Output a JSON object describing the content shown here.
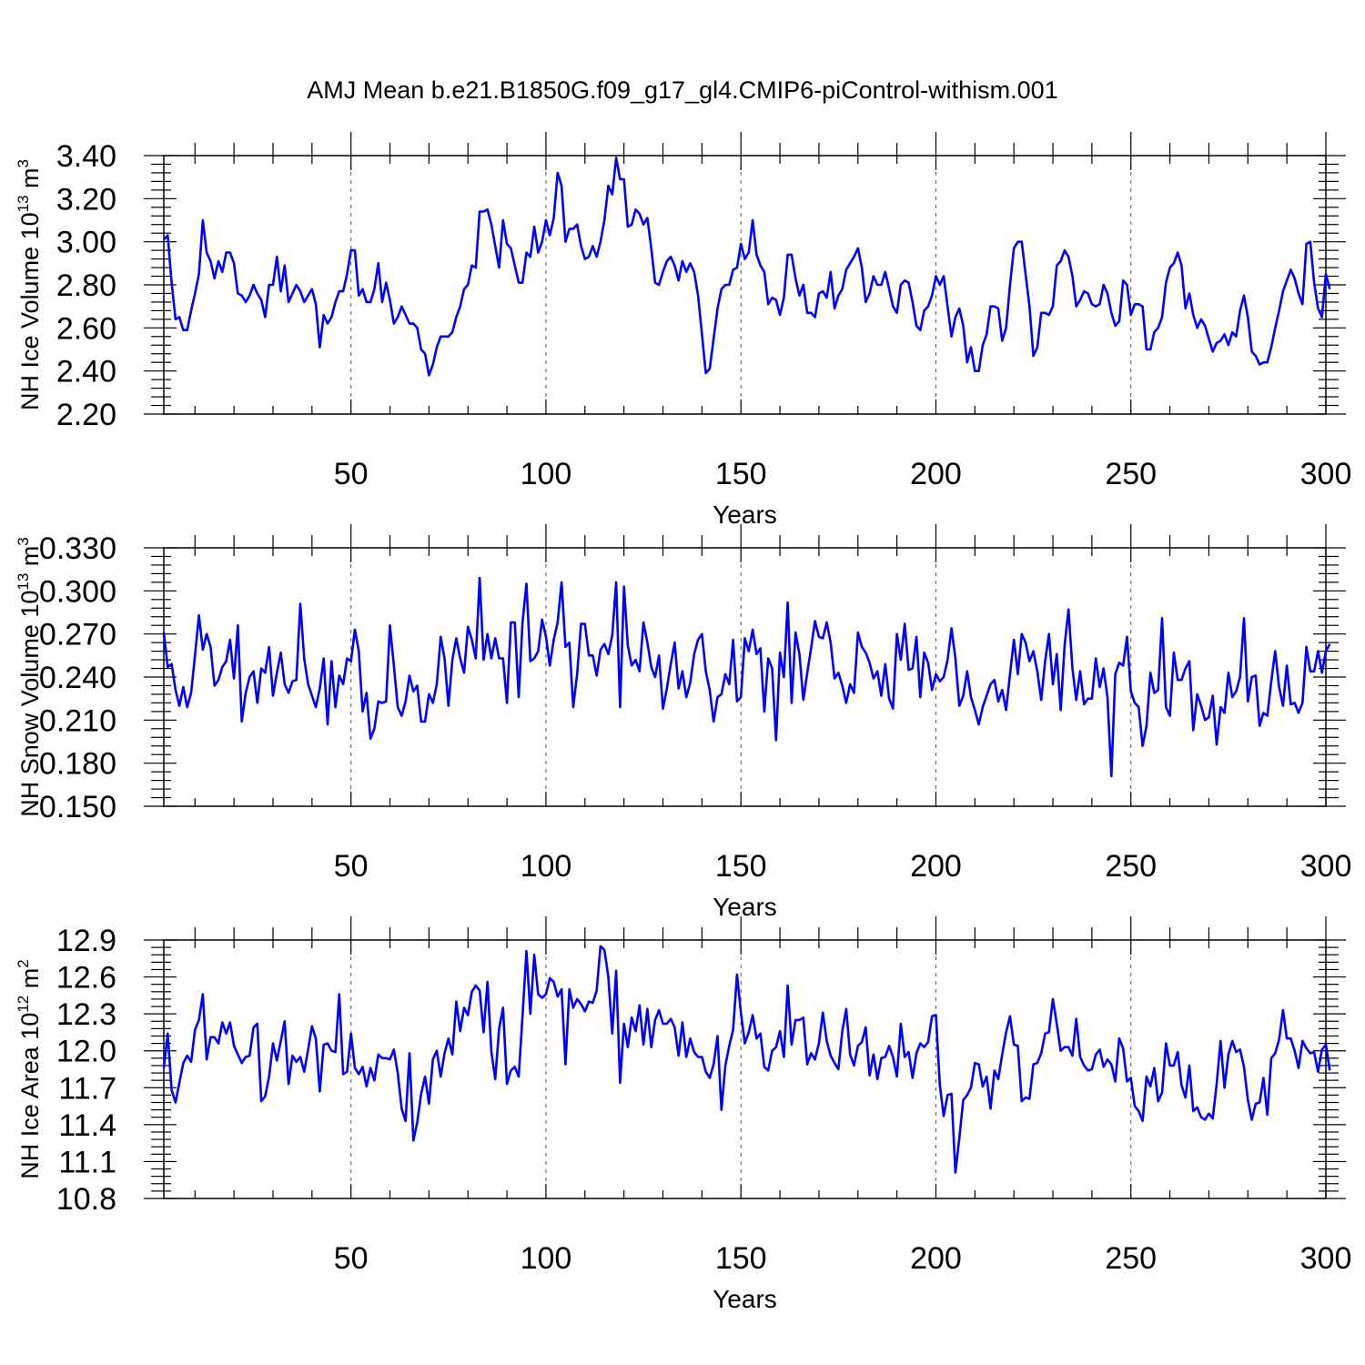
{
  "title": "AMJ Mean b.e21.B1850G.f09_g17_gl4.CMIP6-piControl-withism.001",
  "chart_data": [
    {
      "type": "line",
      "xlabel": "Years",
      "ylabel": "NH Ice Volume 10",
      "ylabel_exp": "13",
      "ylabel_unit": " m",
      "ylabel_unit_exp": "3",
      "xlim": [
        2,
        300
      ],
      "ylim": [
        2.2,
        3.4
      ],
      "xticks": [
        50,
        100,
        150,
        200,
        250,
        300
      ],
      "xtick_labels": [
        "50",
        "100",
        "150",
        "200",
        "250",
        "300"
      ],
      "yticks": [
        2.2,
        2.4,
        2.6,
        2.8,
        3.0,
        3.2,
        3.4
      ],
      "ytick_labels": [
        "2.20",
        "2.40",
        "2.60",
        "2.80",
        "3.00",
        "3.20",
        "3.40"
      ],
      "grid_x": [
        50,
        100,
        150,
        200,
        250
      ],
      "color": "#0000ff",
      "x_start": 2,
      "values": [
        3.01,
        3.03,
        2.81,
        2.64,
        2.65,
        2.59,
        2.59,
        2.68,
        2.76,
        2.85,
        3.1,
        2.95,
        2.91,
        2.83,
        2.91,
        2.86,
        2.95,
        2.95,
        2.9,
        2.76,
        2.75,
        2.72,
        2.75,
        2.8,
        2.76,
        2.73,
        2.65,
        2.8,
        2.8,
        2.93,
        2.77,
        2.89,
        2.72,
        2.76,
        2.8,
        2.77,
        2.72,
        2.75,
        2.78,
        2.71,
        2.51,
        2.66,
        2.62,
        2.65,
        2.72,
        2.77,
        2.77,
        2.85,
        2.96,
        2.96,
        2.75,
        2.78,
        2.72,
        2.72,
        2.78,
        2.9,
        2.72,
        2.81,
        2.73,
        2.62,
        2.65,
        2.7,
        2.66,
        2.62,
        2.62,
        2.6,
        2.5,
        2.48,
        2.38,
        2.43,
        2.51,
        2.56,
        2.56,
        2.56,
        2.58,
        2.65,
        2.7,
        2.78,
        2.8,
        2.89,
        2.88,
        3.14,
        3.14,
        3.15,
        3.08,
        2.98,
        2.88,
        3.1,
        2.99,
        2.97,
        2.89,
        2.81,
        2.81,
        2.95,
        2.93,
        3.07,
        2.95,
        3.0,
        3.1,
        3.03,
        3.11,
        3.32,
        3.26,
        3.0,
        3.06,
        3.06,
        3.08,
        2.98,
        2.92,
        2.93,
        2.98,
        2.93,
        3.0,
        3.1,
        3.26,
        3.22,
        3.39,
        3.29,
        3.29,
        3.07,
        3.08,
        3.15,
        3.13,
        3.08,
        3.11,
        2.97,
        2.81,
        2.8,
        2.86,
        2.91,
        2.93,
        2.89,
        2.82,
        2.91,
        2.86,
        2.9,
        2.86,
        2.75,
        2.57,
        2.39,
        2.41,
        2.55,
        2.69,
        2.78,
        2.8,
        2.8,
        2.87,
        2.88,
        2.99,
        2.92,
        2.95,
        3.1,
        2.94,
        2.89,
        2.86,
        2.71,
        2.74,
        2.73,
        2.66,
        2.74,
        2.94,
        2.94,
        2.83,
        2.75,
        2.8,
        2.67,
        2.67,
        2.65,
        2.76,
        2.77,
        2.74,
        2.86,
        2.69,
        2.75,
        2.78,
        2.87,
        2.9,
        2.93,
        2.97,
        2.88,
        2.72,
        2.76,
        2.84,
        2.8,
        2.8,
        2.86,
        2.78,
        2.7,
        2.67,
        2.8,
        2.82,
        2.81,
        2.72,
        2.61,
        2.59,
        2.68,
        2.7,
        2.75,
        2.84,
        2.8,
        2.84,
        2.7,
        2.56,
        2.65,
        2.69,
        2.61,
        2.44,
        2.51,
        2.4,
        2.4,
        2.52,
        2.57,
        2.7,
        2.7,
        2.69,
        2.54,
        2.6,
        2.8,
        2.97,
        3.0,
        3.0,
        2.85,
        2.7,
        2.47,
        2.51,
        2.67,
        2.67,
        2.66,
        2.7,
        2.89,
        2.91,
        2.96,
        2.93,
        2.84,
        2.7,
        2.73,
        2.77,
        2.76,
        2.71,
        2.7,
        2.71,
        2.8,
        2.76,
        2.67,
        2.61,
        2.63,
        2.82,
        2.8,
        2.66,
        2.71,
        2.71,
        2.7,
        2.5,
        2.5,
        2.58,
        2.6,
        2.65,
        2.81,
        2.88,
        2.9,
        2.95,
        2.89,
        2.69,
        2.76,
        2.66,
        2.6,
        2.64,
        2.61,
        2.55,
        2.49,
        2.53,
        2.54,
        2.57,
        2.52,
        2.58,
        2.56,
        2.68,
        2.75,
        2.65,
        2.49,
        2.47,
        2.43,
        2.44,
        2.44,
        2.51,
        2.6,
        2.68,
        2.77,
        2.82,
        2.87,
        2.83,
        2.76,
        2.71,
        2.99,
        3.0,
        2.81,
        2.69,
        2.65,
        2.85,
        2.78
      ]
    },
    {
      "type": "line",
      "xlabel": "Years",
      "ylabel": "NH Snow Volume 10",
      "ylabel_exp": "13",
      "ylabel_unit": " m",
      "ylabel_unit_exp": "3",
      "xlim": [
        2,
        300
      ],
      "ylim": [
        0.15,
        0.33
      ],
      "xticks": [
        50,
        100,
        150,
        200,
        250,
        300
      ],
      "xtick_labels": [
        "50",
        "100",
        "150",
        "200",
        "250",
        "300"
      ],
      "yticks": [
        0.15,
        0.18,
        0.21,
        0.24,
        0.27,
        0.3,
        0.33
      ],
      "ytick_labels": [
        "0.150",
        "0.180",
        "0.210",
        "0.240",
        "0.270",
        "0.300",
        "0.330"
      ],
      "grid_x": [
        50,
        100,
        150,
        200,
        250
      ],
      "color": "#0000ff",
      "x_start": 2,
      "values": [
        0.271,
        0.247,
        0.249,
        0.231,
        0.22,
        0.233,
        0.219,
        0.229,
        0.255,
        0.283,
        0.259,
        0.27,
        0.261,
        0.234,
        0.238,
        0.247,
        0.251,
        0.266,
        0.239,
        0.276,
        0.209,
        0.229,
        0.24,
        0.244,
        0.222,
        0.246,
        0.243,
        0.261,
        0.227,
        0.243,
        0.257,
        0.235,
        0.229,
        0.237,
        0.238,
        0.291,
        0.253,
        0.235,
        0.227,
        0.219,
        0.232,
        0.253,
        0.207,
        0.251,
        0.219,
        0.241,
        0.235,
        0.253,
        0.251,
        0.273,
        0.258,
        0.216,
        0.229,
        0.197,
        0.204,
        0.223,
        0.222,
        0.223,
        0.276,
        0.248,
        0.219,
        0.213,
        0.223,
        0.241,
        0.23,
        0.234,
        0.209,
        0.209,
        0.228,
        0.222,
        0.235,
        0.268,
        0.253,
        0.22,
        0.252,
        0.267,
        0.253,
        0.243,
        0.275,
        0.266,
        0.253,
        0.309,
        0.252,
        0.27,
        0.253,
        0.267,
        0.253,
        0.253,
        0.222,
        0.278,
        0.278,
        0.226,
        0.278,
        0.305,
        0.251,
        0.253,
        0.258,
        0.28,
        0.268,
        0.248,
        0.266,
        0.278,
        0.306,
        0.261,
        0.264,
        0.219,
        0.242,
        0.277,
        0.277,
        0.255,
        0.255,
        0.241,
        0.259,
        0.263,
        0.256,
        0.269,
        0.306,
        0.219,
        0.303,
        0.262,
        0.248,
        0.252,
        0.244,
        0.278,
        0.264,
        0.247,
        0.24,
        0.255,
        0.218,
        0.232,
        0.249,
        0.264,
        0.232,
        0.244,
        0.226,
        0.236,
        0.256,
        0.266,
        0.27,
        0.244,
        0.231,
        0.209,
        0.226,
        0.228,
        0.242,
        0.235,
        0.266,
        0.223,
        0.226,
        0.267,
        0.258,
        0.273,
        0.256,
        0.26,
        0.216,
        0.253,
        0.246,
        0.196,
        0.257,
        0.24,
        0.292,
        0.222,
        0.271,
        0.256,
        0.224,
        0.243,
        0.26,
        0.279,
        0.268,
        0.267,
        0.278,
        0.264,
        0.239,
        0.243,
        0.234,
        0.222,
        0.235,
        0.229,
        0.271,
        0.261,
        0.257,
        0.25,
        0.239,
        0.244,
        0.227,
        0.249,
        0.225,
        0.218,
        0.27,
        0.252,
        0.277,
        0.245,
        0.246,
        0.268,
        0.226,
        0.257,
        0.25,
        0.231,
        0.242,
        0.237,
        0.24,
        0.252,
        0.274,
        0.253,
        0.22,
        0.227,
        0.244,
        0.226,
        0.217,
        0.207,
        0.219,
        0.227,
        0.235,
        0.238,
        0.223,
        0.231,
        0.217,
        0.242,
        0.266,
        0.242,
        0.27,
        0.264,
        0.251,
        0.258,
        0.244,
        0.224,
        0.251,
        0.27,
        0.235,
        0.256,
        0.217,
        0.262,
        0.287,
        0.246,
        0.224,
        0.244,
        0.221,
        0.225,
        0.225,
        0.253,
        0.233,
        0.246,
        0.226,
        0.171,
        0.242,
        0.25,
        0.248,
        0.268,
        0.23,
        0.222,
        0.219,
        0.192,
        0.206,
        0.243,
        0.229,
        0.231,
        0.281,
        0.219,
        0.213,
        0.257,
        0.238,
        0.238,
        0.246,
        0.251,
        0.203,
        0.228,
        0.22,
        0.21,
        0.212,
        0.227,
        0.193,
        0.219,
        0.215,
        0.243,
        0.226,
        0.23,
        0.24,
        0.281,
        0.223,
        0.24,
        0.241,
        0.206,
        0.215,
        0.213,
        0.237,
        0.258,
        0.233,
        0.22,
        0.248,
        0.221,
        0.222,
        0.215,
        0.222,
        0.261,
        0.244,
        0.244,
        0.258,
        0.243,
        0.258,
        0.263
      ]
    },
    {
      "type": "line",
      "xlabel": "Years",
      "ylabel": "NH Ice Area 10",
      "ylabel_exp": "12",
      "ylabel_unit": " m",
      "ylabel_unit_exp": "2",
      "xlim": [
        2,
        300
      ],
      "ylim": [
        10.8,
        12.9
      ],
      "xticks": [
        50,
        100,
        150,
        200,
        250,
        300
      ],
      "xtick_labels": [
        "50",
        "100",
        "150",
        "200",
        "250",
        "300"
      ],
      "yticks": [
        10.8,
        11.1,
        11.4,
        11.7,
        12.0,
        12.3,
        12.6,
        12.9
      ],
      "ytick_labels": [
        "10.8",
        "11.1",
        "11.4",
        "11.7",
        "12.0",
        "12.3",
        "12.6",
        "12.9"
      ],
      "grid_x": [
        50,
        100,
        150,
        200,
        250
      ],
      "color": "#0000ff",
      "x_start": 2,
      "values": [
        11.86,
        12.14,
        11.68,
        11.58,
        11.74,
        11.9,
        11.96,
        11.91,
        12.17,
        12.25,
        12.46,
        11.93,
        12.11,
        12.11,
        12.06,
        12.23,
        12.14,
        12.23,
        12.04,
        11.97,
        11.9,
        11.95,
        11.96,
        12.19,
        12.22,
        11.59,
        11.63,
        11.79,
        12.06,
        11.92,
        12.08,
        12.24,
        11.73,
        11.96,
        11.91,
        11.95,
        11.83,
        12.01,
        12.2,
        12.1,
        11.67,
        12.05,
        12.06,
        12.0,
        11.99,
        12.46,
        11.81,
        11.83,
        12.14,
        11.86,
        11.81,
        11.87,
        11.71,
        11.86,
        11.76,
        11.97,
        11.94,
        11.94,
        11.93,
        12.01,
        11.82,
        11.53,
        11.43,
        11.98,
        11.27,
        11.42,
        11.65,
        11.79,
        11.57,
        11.93,
        12.0,
        11.79,
        11.98,
        12.1,
        11.97,
        12.4,
        12.16,
        12.35,
        12.29,
        12.48,
        12.53,
        12.49,
        12.15,
        12.56,
        11.99,
        11.77,
        12.18,
        12.35,
        11.73,
        11.84,
        11.87,
        11.79,
        12.28,
        12.81,
        12.3,
        12.78,
        12.46,
        12.43,
        12.46,
        12.59,
        12.56,
        12.44,
        12.5,
        11.89,
        12.5,
        12.35,
        12.42,
        12.38,
        12.32,
        12.4,
        12.39,
        12.49,
        12.85,
        12.82,
        12.6,
        12.14,
        12.65,
        11.74,
        12.22,
        12.03,
        12.27,
        12.16,
        12.37,
        12.05,
        12.34,
        12.03,
        12.25,
        12.33,
        12.22,
        12.22,
        12.26,
        12.19,
        11.96,
        12.23,
        11.95,
        12.1,
        11.99,
        11.95,
        11.95,
        11.83,
        11.78,
        11.89,
        12.12,
        11.52,
        11.88,
        12.04,
        12.17,
        12.62,
        12.31,
        12.06,
        12.15,
        12.29,
        12.1,
        12.14,
        11.87,
        11.84,
        12.0,
        12.03,
        12.16,
        11.95,
        12.53,
        12.05,
        12.25,
        12.25,
        12.27,
        11.89,
        11.98,
        11.93,
        12.06,
        12.31,
        12.08,
        11.96,
        11.9,
        11.85,
        12.16,
        12.34,
        11.97,
        11.88,
        12.04,
        12.07,
        12.19,
        11.8,
        11.97,
        11.77,
        11.94,
        11.95,
        12.04,
        11.95,
        11.79,
        12.22,
        11.95,
        11.99,
        11.78,
        11.98,
        12.06,
        12.03,
        12.07,
        12.28,
        12.29,
        11.72,
        11.47,
        11.64,
        11.65,
        11.01,
        11.29,
        11.6,
        11.64,
        11.7,
        11.9,
        11.89,
        11.71,
        11.79,
        11.53,
        11.84,
        11.77,
        11.97,
        12.15,
        12.28,
        12.05,
        12.04,
        11.59,
        11.62,
        11.61,
        11.89,
        11.9,
        11.98,
        12.14,
        12.15,
        12.42,
        12.22,
        12.0,
        12.03,
        12.03,
        11.96,
        12.26,
        11.95,
        11.88,
        11.84,
        11.85,
        11.97,
        12.01,
        11.87,
        11.93,
        11.89,
        11.75,
        12.1,
        12.02,
        11.75,
        11.78,
        11.55,
        11.51,
        11.43,
        11.79,
        11.71,
        11.86,
        11.59,
        11.66,
        12.06,
        11.88,
        11.88,
        11.99,
        11.72,
        11.62,
        11.88,
        11.51,
        11.54,
        11.46,
        11.44,
        11.49,
        11.45,
        11.73,
        12.08,
        11.7,
        11.97,
        12.08,
        11.99,
        12.01,
        11.87,
        11.6,
        11.44,
        11.57,
        11.58,
        11.78,
        11.48,
        11.94,
        11.98,
        12.09,
        12.33,
        12.1,
        12.1,
        12.0,
        11.86,
        12.08,
        12.02,
        11.98,
        11.99,
        11.83,
        12.01,
        12.05,
        11.84
      ]
    }
  ]
}
